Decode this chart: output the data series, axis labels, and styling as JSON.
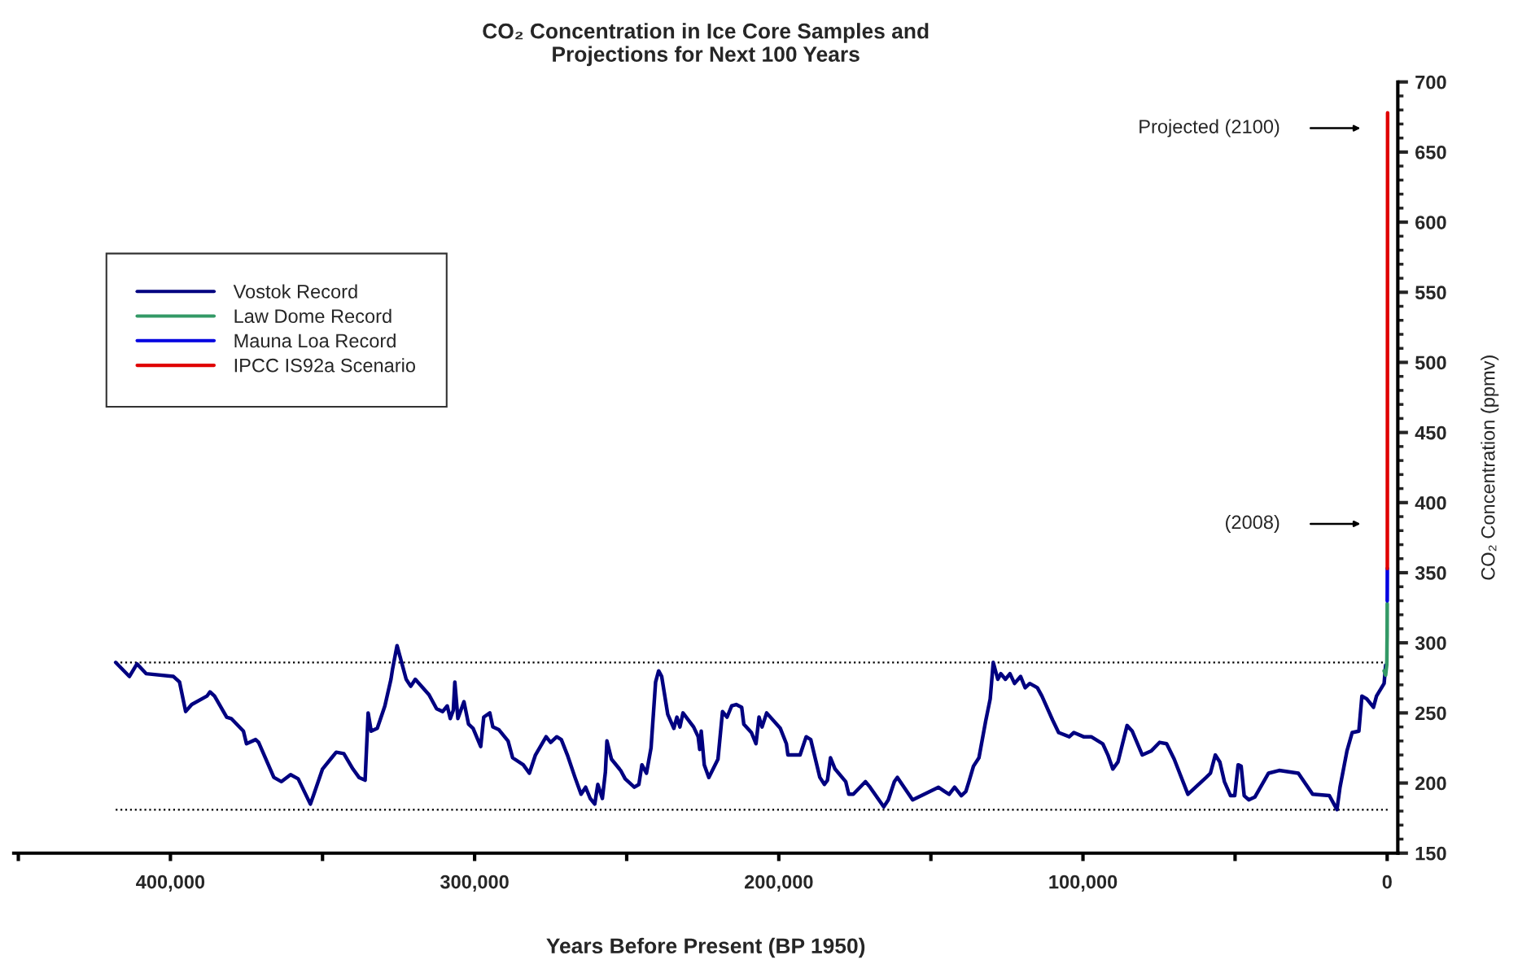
{
  "chart_data": {
    "type": "line",
    "title": "CO₂ Concentration in Ice Core Samples and\nProjections for Next 100 Years",
    "xlabel": "Years Before Present (BP 1950)",
    "ylabel": "CO₂ Concentration (ppmv)",
    "xlim": [
      451500,
      -3500
    ],
    "xticks": [
      {
        "value": 450000,
        "label": null
      },
      {
        "value": 400000,
        "label": "400,000"
      },
      {
        "value": 350000,
        "label": null
      },
      {
        "value": 300000,
        "label": "300,000"
      },
      {
        "value": 250000,
        "label": null
      },
      {
        "value": 200000,
        "label": "200,000"
      },
      {
        "value": 150000,
        "label": null
      },
      {
        "value": 100000,
        "label": "100,000"
      },
      {
        "value": 50000,
        "label": null
      },
      0
    ],
    "ylim": [
      150,
      700
    ],
    "yticks": [
      150,
      200,
      250,
      300,
      350,
      400,
      450,
      500,
      550,
      600,
      650,
      700
    ],
    "grid": false,
    "legend": "top left",
    "series": [
      {
        "name": "Vostok Record",
        "color": "#000080",
        "x": [
          418000,
          413500,
          411000,
          408000,
          399000,
          397000,
          395000,
          393000,
          388000,
          387000,
          385500,
          381500,
          380000,
          376000,
          375000,
          372000,
          371000,
          366000,
          363500,
          360500,
          358000,
          354000,
          353000,
          350000,
          347000,
          345500,
          343000,
          340000,
          338000,
          336000,
          335000,
          334000,
          332000,
          329500,
          327500,
          327000,
          325500,
          324500,
          322500,
          321000,
          319500,
          315000,
          312500,
          310500,
          309000,
          308000,
          307000,
          306500,
          305500,
          303500,
          302000,
          300500,
          298000,
          297000,
          295000,
          294000,
          292000,
          289000,
          287500,
          284000,
          282000,
          280000,
          276500,
          275000,
          273000,
          271500,
          269500,
          267000,
          265000,
          263500,
          262000,
          260500,
          259500,
          258000,
          257000,
          256500,
          255000,
          252000,
          250500,
          247500,
          246000,
          245000,
          243500,
          242000,
          240500,
          239500,
          238500,
          236500,
          234500,
          233500,
          232500,
          231500,
          228000,
          226500,
          226000,
          225500,
          224500,
          223000,
          220000,
          218500,
          217000,
          215500,
          214000,
          212200,
          211500,
          209000,
          207500,
          206500,
          205500,
          204000,
          199500,
          197500,
          197000,
          193000,
          191000,
          189500,
          186500,
          185000,
          184000,
          183000,
          181500,
          178000,
          177000,
          175500,
          171500,
          170000,
          165500,
          164000,
          162000,
          161000,
          156000,
          147500,
          145500,
          144000,
          142200,
          140000,
          138500,
          137500,
          136000,
          134200,
          132000,
          130500,
          129500,
          128000,
          127000,
          125500,
          124000,
          122500,
          120500,
          119000,
          117500,
          115000,
          113500,
          110000,
          108000,
          104500,
          103000,
          99800,
          97300,
          93500,
          91800,
          90200,
          88500,
          87000,
          85500,
          83800,
          80500,
          77500,
          74800,
          72500,
          70000,
          65500,
          59500,
          58100,
          56500,
          55000,
          53500,
          51500,
          50100,
          49000,
          48000,
          47000,
          45500,
          43500,
          39000,
          35500,
          29200,
          24500,
          19000,
          17500,
          16500,
          15500,
          13200,
          11500,
          9300,
          8300,
          6700,
          4500,
          3500,
          1000,
          500
        ],
        "values": [
          286,
          276,
          285,
          278,
          276,
          272,
          251,
          256,
          262,
          265,
          262,
          247,
          246,
          237,
          228,
          231,
          229,
          204,
          201,
          206,
          203,
          185,
          191,
          210,
          218,
          222,
          221,
          210,
          204,
          202,
          250,
          237,
          239,
          255,
          274,
          281,
          298,
          290,
          274,
          269,
          274,
          263,
          253,
          251,
          255,
          246,
          252,
          272,
          246,
          258,
          242,
          239,
          226,
          247,
          250,
          240,
          238,
          230,
          218,
          213,
          207,
          220,
          233,
          229,
          233,
          231,
          220,
          204,
          192,
          197,
          189,
          185,
          199,
          189,
          208,
          230,
          217,
          209,
          203,
          197,
          199,
          213,
          207,
          225,
          272,
          280,
          276,
          249,
          239,
          247,
          240,
          250,
          240,
          233,
          224,
          237,
          213,
          204,
          217,
          251,
          247,
          255,
          256,
          254,
          242,
          236,
          228,
          247,
          240,
          250,
          239,
          228,
          220,
          220,
          233,
          231,
          204,
          199,
          202,
          218,
          210,
          201,
          192,
          192,
          201,
          197,
          183,
          188,
          201,
          204,
          188,
          197,
          194,
          192,
          197,
          191,
          194,
          201,
          212,
          218,
          244,
          260,
          286,
          274,
          278,
          274,
          278,
          271,
          276,
          268,
          271,
          268,
          262,
          245,
          236,
          233,
          236,
          233,
          233,
          228,
          220,
          210,
          215,
          228,
          241,
          237,
          220,
          223,
          229,
          228,
          217,
          192,
          204,
          207,
          220,
          215,
          201,
          191,
          191,
          213,
          212,
          191,
          188,
          190,
          207,
          209,
          207,
          192,
          191,
          185,
          181,
          197,
          223,
          236,
          237,
          262,
          260,
          254,
          262,
          271,
          284
        ]
      },
      {
        "name": "Law Dome Record",
        "color": "#339966",
        "x": [
          1000,
          500,
          150,
          100,
          50,
          10,
          0,
          -20
        ],
        "values": [
          280,
          277,
          284,
          287,
          300,
          305,
          312,
          328
        ]
      },
      {
        "name": "Mauna Loa Record",
        "color": "#0000e0",
        "x": [
          -20,
          -30,
          -40,
          -50,
          -58
        ],
        "values": [
          330,
          334,
          339,
          346,
          353
        ]
      },
      {
        "name": "IPCC IS92a Scenario",
        "color": "#e00000",
        "x": [
          -58,
          -100,
          -150
        ],
        "values": [
          353,
          500,
          678
        ]
      }
    ],
    "ref_lines": [
      {
        "axis": "y",
        "value": 286,
        "line_style": "dotted",
        "color": "#000000"
      },
      {
        "axis": "y",
        "value": 181,
        "line_style": "dotted",
        "color": "#000000"
      }
    ],
    "annotations": [
      "Projected (2100)",
      "(2008)"
    ]
  }
}
